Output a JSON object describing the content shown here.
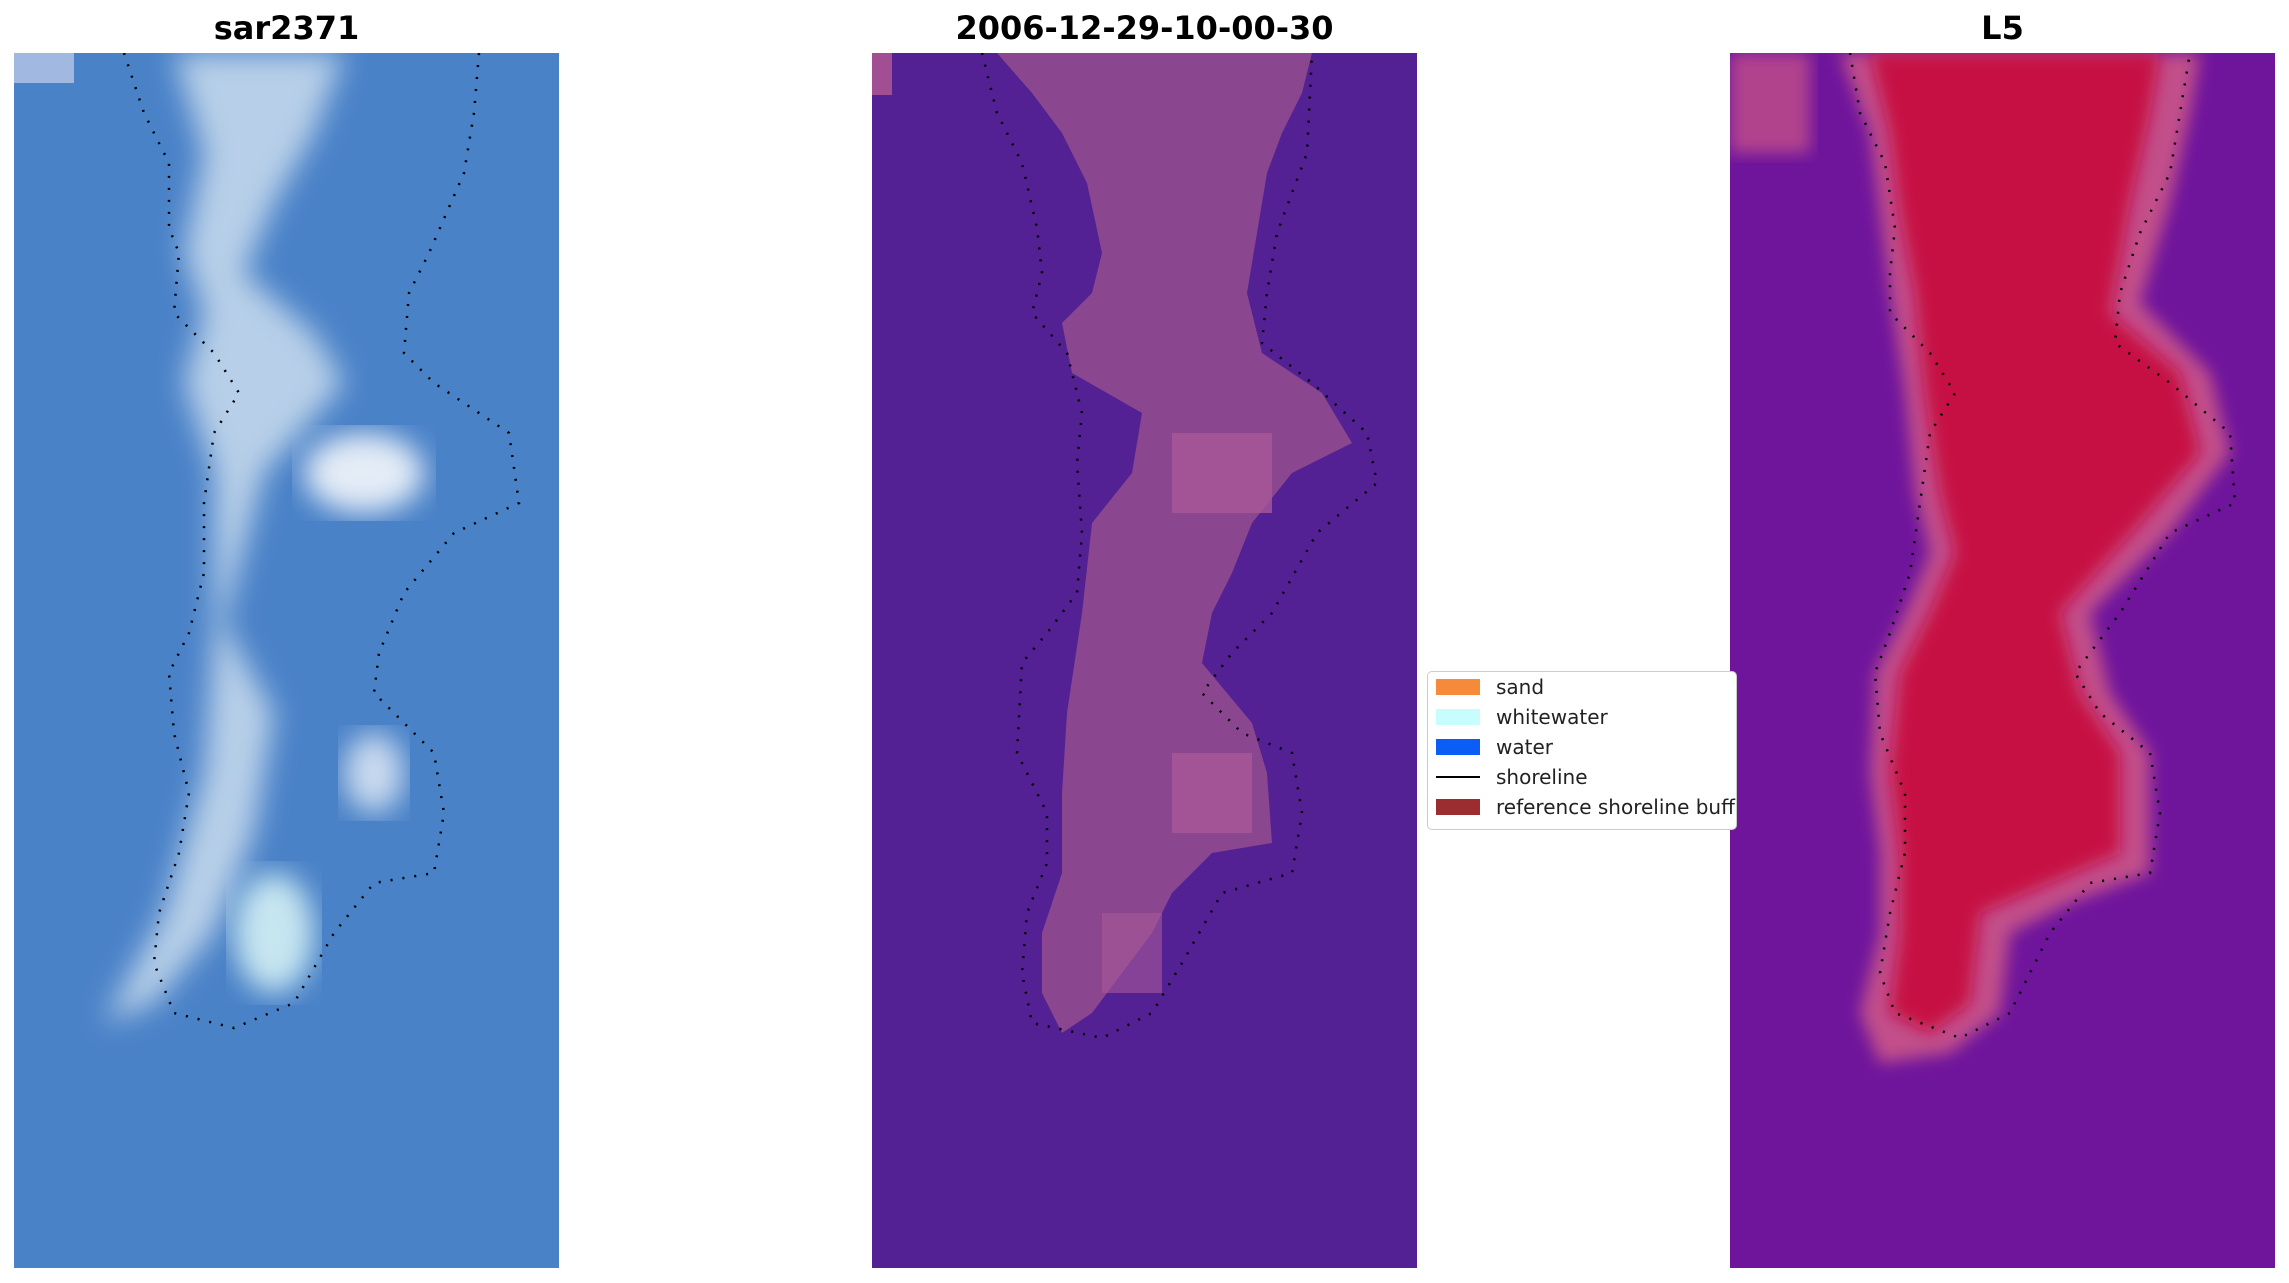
{
  "panels": [
    {
      "title": "sar2371"
    },
    {
      "title": "2006-12-29-10-00-30"
    },
    {
      "title": "L5"
    }
  ],
  "legend": {
    "items": [
      {
        "label": "sand",
        "color": "#f58a3b",
        "kind": "patch"
      },
      {
        "label": "whitewater",
        "color": "#c8fdfd",
        "kind": "patch"
      },
      {
        "label": "water",
        "color": "#0a5df5",
        "kind": "patch"
      },
      {
        "label": "shoreline",
        "color": "#000000",
        "kind": "line"
      },
      {
        "label": "reference shoreline buffer",
        "color": "#9b2d30",
        "kind": "patch"
      }
    ]
  },
  "colors": {
    "rgb_water": "#4a82c8",
    "rgb_land": "#b7cfe8",
    "class_background": "#532193",
    "class_foreground": "#8a468e",
    "mndwi_low": "#6f159c",
    "mndwi_high": "#c7103f",
    "mndwi_buffer": "#c24f8a"
  }
}
